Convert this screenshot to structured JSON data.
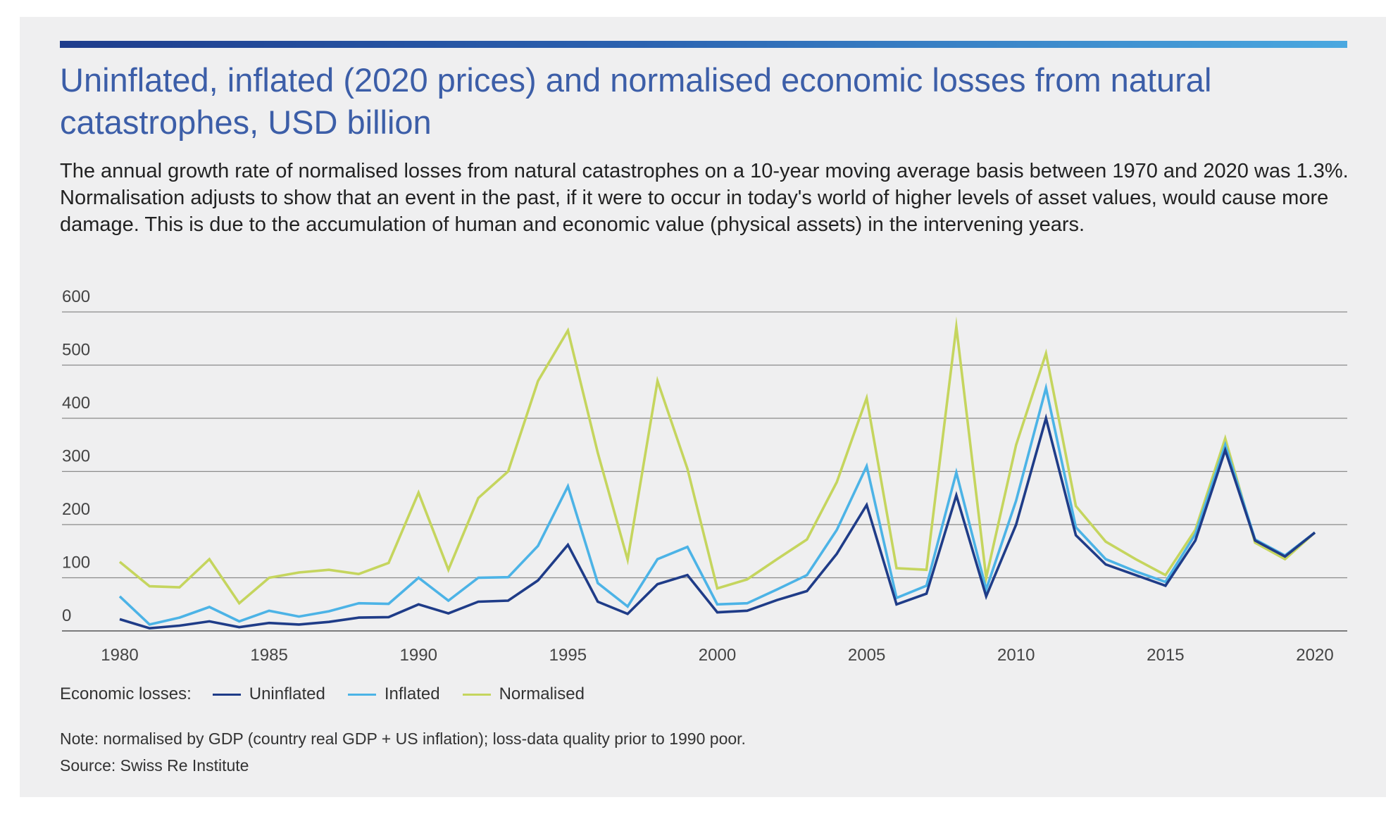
{
  "header": {
    "title": "Uninflated, inflated (2020 prices) and normalised economic losses from natural catastrophes, USD billion",
    "subtitle": "The annual growth rate of normalised losses from natural catastrophes on a 10-year moving average basis between 1970 and 2020 was 1.3%. Normalisation adjusts to show that an event in the past, if it were to occur in today's world of higher levels of asset values, would cause more damage. This is due to the accumulation of human and economic value (physical assets) in the intervening years."
  },
  "legend": {
    "title": "Economic losses:",
    "items": [
      "Uninflated",
      "Inflated",
      "Normalised"
    ]
  },
  "footer": {
    "note": "Note: normalised by GDP (country real GDP + US inflation); loss-data quality prior to 1990 poor.",
    "source": "Source: Swiss Re Institute"
  },
  "colors": {
    "title": "#3c5ea8",
    "uninflated": "#1f3c88",
    "inflated": "#4cb3e6",
    "normalised": "#c5d55e",
    "gridline": "#8a8a8a",
    "panel": "#efeff0"
  },
  "chart_data": {
    "type": "line",
    "x": [
      1980,
      1981,
      1982,
      1983,
      1984,
      1985,
      1986,
      1987,
      1988,
      1989,
      1990,
      1991,
      1992,
      1993,
      1994,
      1995,
      1996,
      1997,
      1998,
      1999,
      2000,
      2001,
      2002,
      2003,
      2004,
      2005,
      2006,
      2007,
      2008,
      2009,
      2010,
      2011,
      2012,
      2013,
      2014,
      2015,
      2016,
      2017,
      2018,
      2019,
      2020
    ],
    "x_ticks": [
      1980,
      1985,
      1990,
      1995,
      2000,
      2005,
      2010,
      2015,
      2020
    ],
    "y_ticks": [
      0,
      100,
      200,
      300,
      400,
      500,
      600
    ],
    "ylim": [
      0,
      600
    ],
    "xlim": [
      1980,
      2020
    ],
    "grid": "horizontal",
    "legend_position": "bottom-left",
    "series": [
      {
        "name": "Uninflated",
        "color": "#1f3c88",
        "values": [
          22,
          5,
          10,
          18,
          7,
          15,
          12,
          17,
          25,
          26,
          50,
          33,
          55,
          57,
          95,
          162,
          55,
          32,
          88,
          105,
          35,
          38,
          58,
          75,
          145,
          237,
          50,
          70,
          255,
          65,
          200,
          400,
          180,
          125,
          105,
          85,
          170,
          340,
          170,
          140,
          185
        ]
      },
      {
        "name": "Inflated",
        "color": "#4cb3e6",
        "values": [
          65,
          12,
          25,
          45,
          18,
          38,
          27,
          37,
          52,
          51,
          100,
          57,
          100,
          101,
          160,
          272,
          90,
          46,
          135,
          158,
          50,
          52,
          78,
          105,
          190,
          310,
          62,
          85,
          298,
          78,
          245,
          457,
          195,
          135,
          112,
          92,
          182,
          350,
          172,
          142,
          185
        ]
      },
      {
        "name": "Normalised",
        "color": "#c5d55e",
        "values": [
          130,
          84,
          82,
          135,
          52,
          100,
          110,
          115,
          107,
          128,
          260,
          115,
          250,
          300,
          470,
          565,
          335,
          134,
          470,
          305,
          80,
          97,
          135,
          172,
          280,
          438,
          118,
          115,
          572,
          100,
          350,
          522,
          235,
          168,
          135,
          105,
          190,
          362,
          166,
          135,
          185
        ]
      }
    ]
  }
}
